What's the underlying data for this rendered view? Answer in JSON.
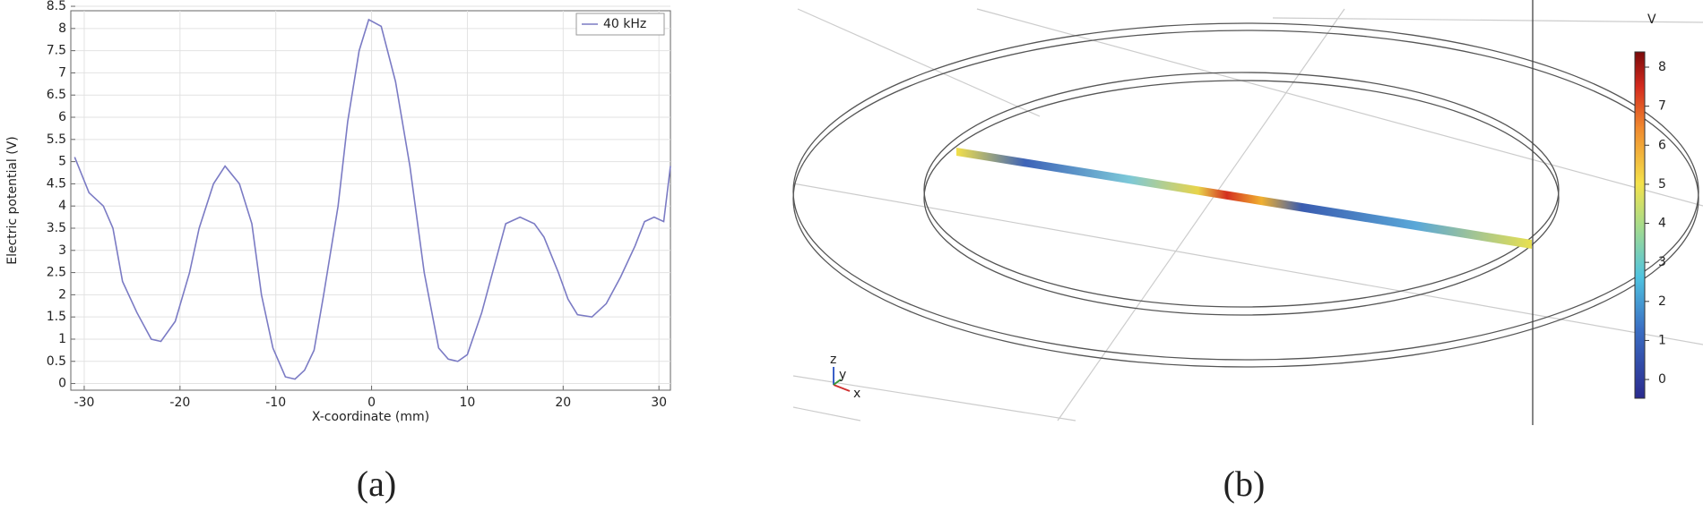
{
  "chart_data": [
    {
      "type": "line",
      "caption": "(a)",
      "xlabel": "X-coordinate (mm)",
      "ylabel": "Electric potential (V)",
      "x": [
        -31,
        -29.5,
        -28,
        -27,
        -26,
        -24.5,
        -23,
        -22,
        -20.5,
        -19,
        -18,
        -16.5,
        -15.3,
        -13.8,
        -12.5,
        -11.5,
        -10.3,
        -9,
        -8,
        -7,
        -6,
        -5,
        -3.5,
        -2.5,
        -1.3,
        -0.3,
        1,
        2.5,
        4,
        5.5,
        7,
        8,
        9,
        10,
        11.5,
        13,
        14,
        15.5,
        17,
        18,
        19.5,
        20.5,
        21.5,
        23,
        24.5,
        26,
        27.5,
        28.5,
        29.5,
        30.5,
        31.2
      ],
      "series": [
        {
          "name": "40 kHz",
          "color": "#7b7bc4",
          "values": [
            5.1,
            4.3,
            4.0,
            3.5,
            2.3,
            1.6,
            1.0,
            0.95,
            1.4,
            2.5,
            3.5,
            4.5,
            4.9,
            4.5,
            3.6,
            2.0,
            0.8,
            0.15,
            0.1,
            0.3,
            0.75,
            2.0,
            4.0,
            5.9,
            7.5,
            8.2,
            8.05,
            6.8,
            4.9,
            2.5,
            0.8,
            0.55,
            0.5,
            0.65,
            1.6,
            2.8,
            3.6,
            3.75,
            3.6,
            3.3,
            2.5,
            1.9,
            1.55,
            1.5,
            1.8,
            2.4,
            3.1,
            3.65,
            3.75,
            3.65,
            4.9
          ]
        }
      ],
      "xlim": [
        -31.4,
        31.2
      ],
      "xticks": [
        -30,
        -20,
        -10,
        0,
        10,
        20,
        30
      ],
      "ylim": [
        -0.15,
        8.4
      ],
      "yticks": [
        0,
        0.5,
        1,
        1.5,
        2,
        2.5,
        3,
        3.5,
        4,
        4.5,
        5,
        5.5,
        6,
        6.5,
        7,
        7.5,
        8,
        8.5
      ],
      "grid": true,
      "legend": "top-right"
    },
    {
      "type": "colormap",
      "caption": "(b)",
      "colorbar_label": "V",
      "clim": [
        -0.48,
        8.39
      ],
      "cticks": [
        0,
        1,
        2,
        3,
        4,
        5,
        6,
        7,
        8
      ],
      "axis_labels": [
        "z",
        "y",
        "x"
      ]
    }
  ]
}
